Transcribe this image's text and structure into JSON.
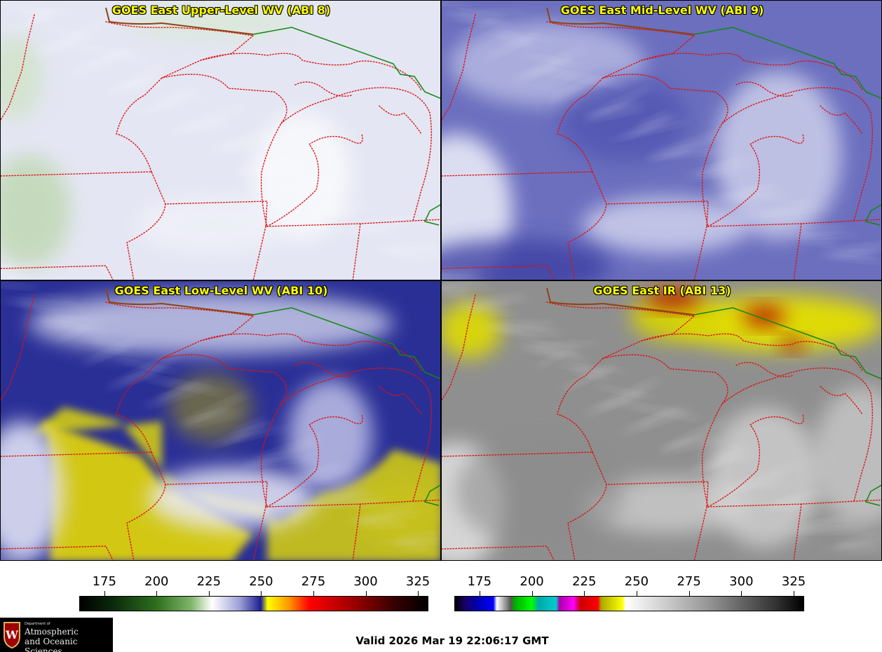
{
  "panels": [
    {
      "id": "p1",
      "title": "GOES East Upper-Level WV (ABI 8)",
      "bg": "#e4e6f3",
      "cloud": "#ffffff",
      "tone": "upper"
    },
    {
      "id": "p2",
      "title": "GOES East Mid-Level WV (ABI 9)",
      "bg": "#6b6fbe",
      "cloud": "#eef0fa",
      "tone": "mid"
    },
    {
      "id": "p3",
      "title": "GOES East Low-Level WV (ABI 10)",
      "bg": "#2a2f96",
      "cloud": "#e4e6f6",
      "tone": "low"
    },
    {
      "id": "p4",
      "title": "GOES East IR (ABI 13)",
      "bg": "#8f8f8f",
      "cloud": "#eeeeee",
      "tone": "ir"
    }
  ],
  "colorbars": {
    "wv": {
      "ticks": [
        "175",
        "200",
        "225",
        "250",
        "275",
        "300",
        "325"
      ],
      "tick_values": [
        175,
        200,
        225,
        250,
        275,
        300,
        325
      ],
      "range": [
        163,
        330
      ]
    },
    "ir": {
      "ticks": [
        "175",
        "200",
        "225",
        "250",
        "275",
        "300",
        "325"
      ],
      "tick_values": [
        175,
        200,
        225,
        250,
        275,
        300,
        325
      ],
      "range": [
        163,
        330
      ]
    }
  },
  "logo": {
    "department": "Department of",
    "line1": "Atmospheric",
    "line2": "and Oceanic Sciences",
    "seal_letter": "W"
  },
  "footer": {
    "valid": "Valid 2026 Mar 19 22:06:17 GMT"
  },
  "colors": {
    "state_borders": "#dd1111",
    "intl_border": "#118811",
    "coastline": "#8b4513",
    "title_text": "#ffff00"
  }
}
